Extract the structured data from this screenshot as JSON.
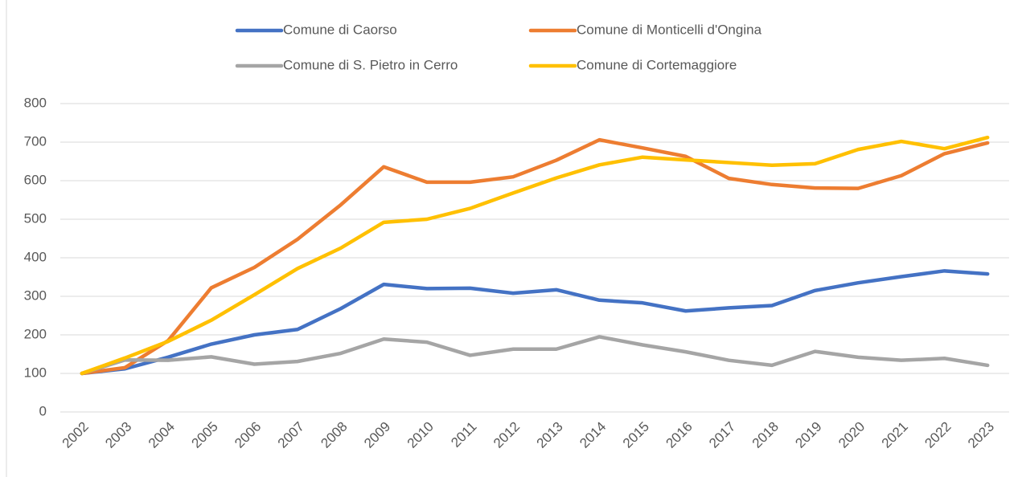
{
  "chart_data": {
    "type": "line",
    "categories": [
      "2002",
      "2003",
      "2004",
      "2005",
      "2006",
      "2007",
      "2008",
      "2009",
      "2010",
      "2011",
      "2012",
      "2013",
      "2014",
      "2015",
      "2016",
      "2017",
      "2018",
      "2019",
      "2020",
      "2021",
      "2022",
      "2023"
    ],
    "series": [
      {
        "name": "Comune di Caorso",
        "color": "#4472c4",
        "values": [
          100,
          112,
          142,
          176,
          200,
          214,
          268,
          331,
          320,
          321,
          308,
          317,
          290,
          283,
          262,
          270,
          276,
          315,
          335,
          351,
          366,
          358
        ]
      },
      {
        "name": "Comune di Monticelli d'Ongina",
        "color": "#ed7d31",
        "values": [
          100,
          115,
          185,
          322,
          375,
          448,
          537,
          636,
          596,
          596,
          610,
          653,
          706,
          685,
          663,
          606,
          590,
          581,
          580,
          613,
          670,
          698
        ]
      },
      {
        "name": "Comune di S. Pietro in Cerro",
        "color": "#a5a5a5",
        "values": [
          100,
          135,
          134,
          143,
          124,
          131,
          152,
          189,
          181,
          147,
          163,
          163,
          195,
          174,
          156,
          134,
          121,
          157,
          142,
          134,
          139,
          121
        ]
      },
      {
        "name": "Comune di Cortemaggiore",
        "color": "#ffc000",
        "values": [
          100,
          140,
          183,
          238,
          304,
          372,
          425,
          492,
          500,
          528,
          568,
          607,
          641,
          661,
          654,
          647,
          640,
          644,
          681,
          702,
          683,
          712
        ]
      }
    ],
    "ylim": [
      0,
      800
    ],
    "yticks": [
      0,
      100,
      200,
      300,
      400,
      500,
      600,
      700,
      800
    ],
    "grid": true,
    "legend": "top"
  }
}
